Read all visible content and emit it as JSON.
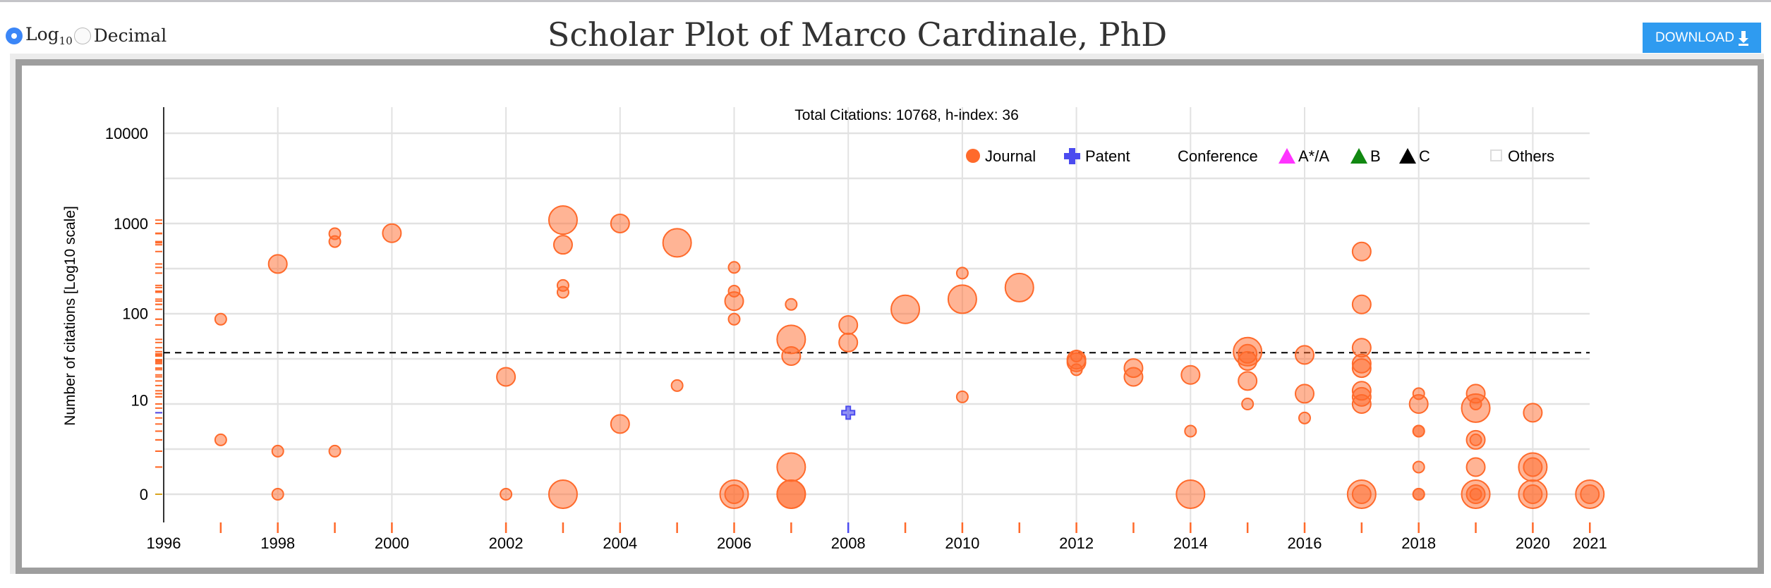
{
  "header": {
    "title": "Scholar Plot of Marco Cardinale, PhD",
    "scale_options": [
      {
        "label": "Log",
        "sub": "10",
        "selected": true
      },
      {
        "label": "Decimal",
        "selected": false
      }
    ],
    "download_label": "DOWNLOAD",
    "download_icon": "download-arrow-icon"
  },
  "colors": {
    "journal": "#ff6a2b",
    "patent": "#4b4bef",
    "a_star_a": "#ff33ff",
    "b": "#118811",
    "c": "#000000",
    "others": "#dddddd",
    "button": "#2f9bf0",
    "radio": "#3b86f7"
  },
  "chart_data": {
    "type": "scatter",
    "title": "Total Citations: 10768, h-index: 36",
    "xlabel": "",
    "ylabel": "Number of citations [Log10 scale]",
    "xlim": [
      1996,
      2021
    ],
    "x_ticks": [
      "1996",
      "1998",
      "2000",
      "2002",
      "2004",
      "2006",
      "2008",
      "2010",
      "2012",
      "2014",
      "2016",
      "2018",
      "2020",
      "2021"
    ],
    "y_ticks": [
      "0",
      "10",
      "100",
      "1000",
      "10000"
    ],
    "y_scale": "log10(v+1)",
    "ylim": [
      0,
      10000
    ],
    "h_index": 36,
    "grid": true,
    "legend": {
      "placement": "top-right",
      "journal": "Journal",
      "patent": "Patent",
      "conference": "Conference",
      "a": "A*/A",
      "b": "B",
      "c": "C",
      "others": "Others"
    },
    "series": [
      {
        "name": "Journal",
        "points": [
          [
            1997,
            86,
            1
          ],
          [
            1997,
            3,
            1
          ],
          [
            1998,
            355,
            2
          ],
          [
            1998,
            2,
            1
          ],
          [
            1998,
            0,
            1
          ],
          [
            1999,
            770,
            1
          ],
          [
            1999,
            630,
            1
          ],
          [
            1999,
            2,
            1
          ],
          [
            2000,
            780,
            2
          ],
          [
            2002,
            19,
            2
          ],
          [
            2002,
            0,
            1
          ],
          [
            2003,
            1090,
            3
          ],
          [
            2003,
            580,
            2
          ],
          [
            2003,
            205,
            1
          ],
          [
            2003,
            172,
            1
          ],
          [
            2003,
            0,
            3
          ],
          [
            2004,
            1000,
            2
          ],
          [
            2004,
            5,
            2
          ],
          [
            2005,
            610,
            3
          ],
          [
            2005,
            15,
            1
          ],
          [
            2006,
            325,
            1
          ],
          [
            2006,
            177,
            1
          ],
          [
            2006,
            137,
            2
          ],
          [
            2006,
            86,
            1
          ],
          [
            2006,
            0,
            3
          ],
          [
            2006,
            0,
            2
          ],
          [
            2007,
            126,
            1
          ],
          [
            2007,
            51,
            3
          ],
          [
            2007,
            33,
            2
          ],
          [
            2007,
            1,
            3
          ],
          [
            2007,
            0,
            3
          ],
          [
            2007,
            0,
            3
          ],
          [
            2008,
            74,
            2
          ],
          [
            2008,
            47,
            2
          ],
          [
            2009,
            111,
            3
          ],
          [
            2010,
            281,
            1
          ],
          [
            2010,
            144,
            3
          ],
          [
            2010,
            11,
            1
          ],
          [
            2011,
            194,
            3
          ],
          [
            2012,
            33,
            1
          ],
          [
            2012,
            30,
            2
          ],
          [
            2012,
            28,
            2
          ],
          [
            2012,
            23,
            1
          ],
          [
            2013,
            24,
            2
          ],
          [
            2013,
            19,
            2
          ],
          [
            2014,
            20,
            2
          ],
          [
            2014,
            4,
            1
          ],
          [
            2014,
            0,
            3
          ],
          [
            2015,
            37,
            3
          ],
          [
            2015,
            35,
            2
          ],
          [
            2015,
            29,
            2
          ],
          [
            2015,
            17,
            2
          ],
          [
            2015,
            9,
            1
          ],
          [
            2016,
            34,
            2
          ],
          [
            2016,
            12,
            2
          ],
          [
            2016,
            6,
            1
          ],
          [
            2017,
            488,
            2
          ],
          [
            2017,
            126,
            2
          ],
          [
            2017,
            41,
            2
          ],
          [
            2017,
            27,
            2
          ],
          [
            2017,
            24,
            2
          ],
          [
            2017,
            13,
            2
          ],
          [
            2017,
            11,
            2
          ],
          [
            2017,
            9,
            2
          ],
          [
            2017,
            0,
            3
          ],
          [
            2017,
            0,
            2
          ],
          [
            2018,
            12,
            1
          ],
          [
            2018,
            9,
            2
          ],
          [
            2018,
            4,
            1
          ],
          [
            2018,
            4,
            1
          ],
          [
            2018,
            1,
            1
          ],
          [
            2018,
            0,
            1
          ],
          [
            2018,
            0,
            1
          ],
          [
            2019,
            12,
            2
          ],
          [
            2019,
            9,
            1
          ],
          [
            2019,
            8,
            3
          ],
          [
            2019,
            3,
            2
          ],
          [
            2019,
            3,
            1
          ],
          [
            2019,
            1,
            2
          ],
          [
            2019,
            0,
            3
          ],
          [
            2019,
            0,
            2
          ],
          [
            2019,
            0,
            1
          ],
          [
            2020,
            7,
            2
          ],
          [
            2020,
            1,
            3
          ],
          [
            2020,
            1,
            2
          ],
          [
            2020,
            0,
            3
          ],
          [
            2020,
            0,
            2
          ],
          [
            2021,
            0,
            3
          ],
          [
            2021,
            0,
            2
          ]
        ]
      },
      {
        "name": "Patent",
        "points": [
          [
            2008,
            7,
            1
          ]
        ]
      }
    ]
  }
}
